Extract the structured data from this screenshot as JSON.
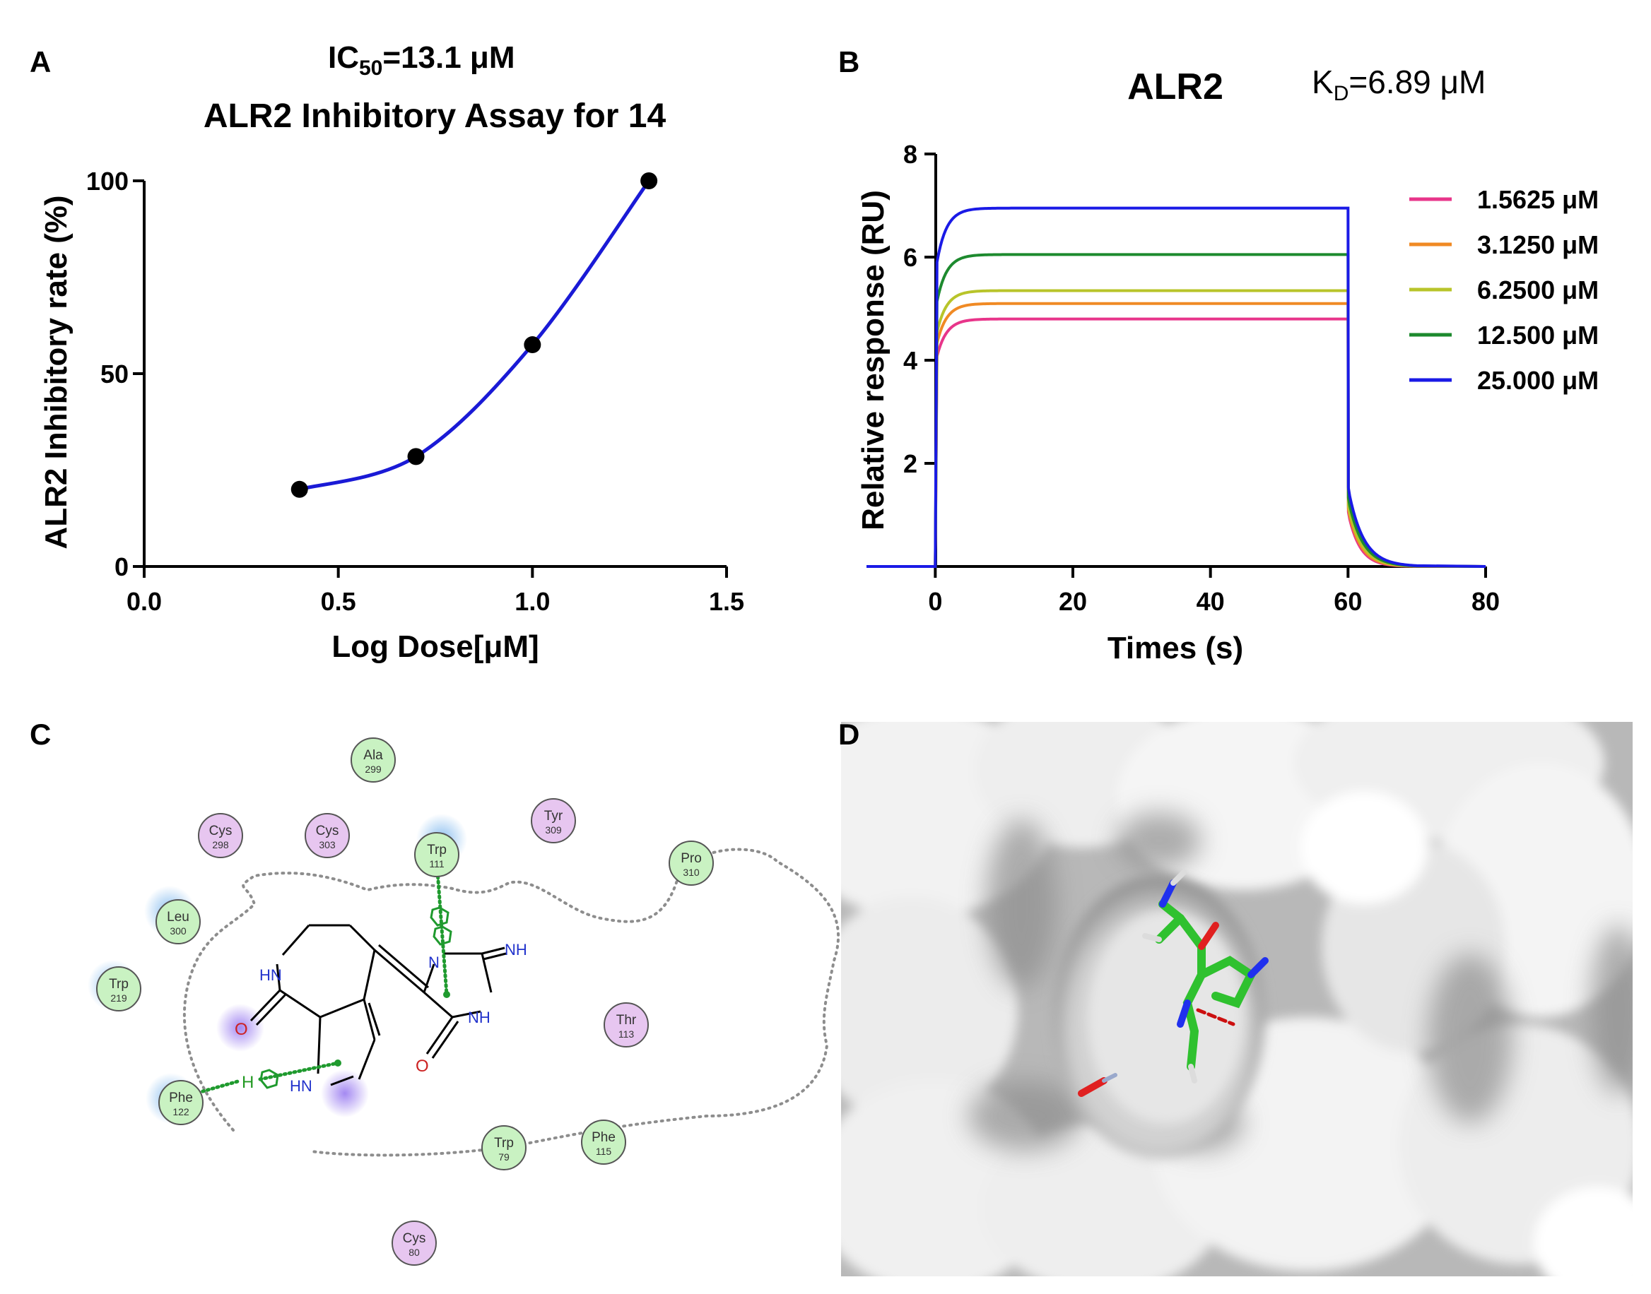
{
  "panels": {
    "a": {
      "letter": "A",
      "ic50_label": "IC",
      "ic50_sub": "50",
      "ic50_value": "=13.1 μM",
      "title": "ALR2 Inhibitory Assay for 14"
    },
    "b": {
      "letter": "B",
      "title": "ALR2",
      "kd_label": "K",
      "kd_sub": "D",
      "kd_value": "=6.89 μM"
    },
    "c": {
      "letter": "C"
    },
    "d": {
      "letter": "D"
    }
  },
  "chart_data": [
    {
      "type": "scatter",
      "title": "ALR2 Inhibitory Assay for 14",
      "xlabel": "Log Dose[μM]",
      "ylabel": "ALR2 Inhibitory rate (%)",
      "xlim": [
        0.0,
        1.5
      ],
      "ylim": [
        0,
        100
      ],
      "xticks": [
        "0.0",
        "0.5",
        "1.0",
        "1.5"
      ],
      "yticks": [
        "0",
        "50",
        "100"
      ],
      "x": [
        0.4,
        0.7,
        1.0,
        1.3
      ],
      "y": [
        20,
        28.5,
        57.5,
        100
      ],
      "fit_color": "#1a1ad6",
      "grid": false
    },
    {
      "type": "line",
      "title": "ALR2",
      "xlabel": "Times (s)",
      "ylabel": "Relative response (RU)",
      "xlim": [
        -10,
        80
      ],
      "ylim": [
        0,
        8
      ],
      "xticks": [
        "0",
        "20",
        "40",
        "60",
        "80"
      ],
      "yticks": [
        "2",
        "4",
        "6",
        "8"
      ],
      "association_start": 0,
      "dissociation_start": 60,
      "legend_position": "top-right",
      "grid": false,
      "series": [
        {
          "name": "1.5625 μM",
          "plateau": 4.8,
          "color": "#e8358a"
        },
        {
          "name": "3.1250 μM",
          "plateau": 5.1,
          "color": "#f08a24"
        },
        {
          "name": "6.2500 μM",
          "plateau": 5.35,
          "color": "#b8c42a"
        },
        {
          "name": "12.500 μM",
          "plateau": 6.05,
          "color": "#1d8a2e"
        },
        {
          "name": "25.000 μM",
          "plateau": 6.95,
          "color": "#1a1ae6"
        }
      ]
    }
  ],
  "interaction_diagram": {
    "residues": [
      {
        "name": "Ala",
        "num": "299",
        "type": "vdw"
      },
      {
        "name": "Cys",
        "num": "298",
        "type": "polar"
      },
      {
        "name": "Cys",
        "num": "303",
        "type": "polar"
      },
      {
        "name": "Trp",
        "num": "111",
        "type": "vdw"
      },
      {
        "name": "Tyr",
        "num": "309",
        "type": "polar"
      },
      {
        "name": "Pro",
        "num": "310",
        "type": "vdw"
      },
      {
        "name": "Leu",
        "num": "300",
        "type": "vdw"
      },
      {
        "name": "Trp",
        "num": "219",
        "type": "vdw"
      },
      {
        "name": "Thr",
        "num": "113",
        "type": "polar"
      },
      {
        "name": "Phe",
        "num": "122",
        "type": "vdw"
      },
      {
        "name": "Trp",
        "num": "79",
        "type": "vdw"
      },
      {
        "name": "Phe",
        "num": "115",
        "type": "vdw"
      },
      {
        "name": "Cys",
        "num": "80",
        "type": "polar"
      }
    ],
    "atom_labels": {
      "hn1": "HN",
      "hn2": "HN",
      "n1": "N",
      "nh": "NH",
      "nh2": "NH",
      "o1": "O",
      "o2": "O",
      "h": "H"
    },
    "colors": {
      "vdw": "#c9f2c2",
      "polar": "#e7c6f0",
      "pi": "#1f9a2e"
    }
  }
}
